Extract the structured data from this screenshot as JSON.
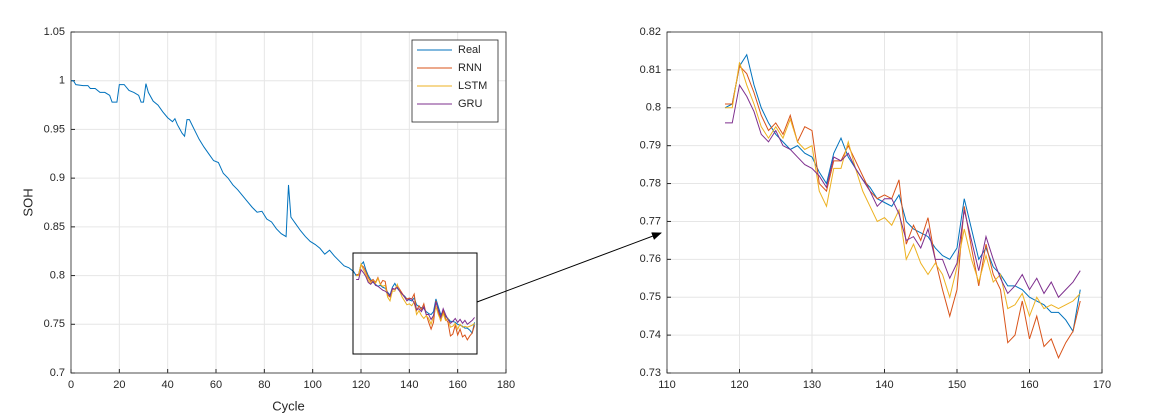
{
  "chart_data": [
    {
      "type": "line",
      "xlabel": "Cycle",
      "ylabel": "SOH",
      "xlim": [
        0,
        180
      ],
      "ylim": [
        0.7,
        1.05
      ],
      "xticks": [
        0,
        20,
        40,
        60,
        80,
        100,
        120,
        140,
        160,
        180
      ],
      "yticks": [
        0.7,
        0.75,
        0.8,
        0.85,
        0.9,
        0.95,
        1,
        1.05
      ],
      "grid": true,
      "legend": "northeast",
      "series": [
        {
          "name": "Real",
          "color": "#0072bd",
          "x": [
            0,
            1,
            2,
            5,
            7,
            8,
            10,
            12,
            14,
            16,
            17,
            19,
            20,
            22,
            24,
            26,
            28,
            29,
            30,
            31,
            32,
            34,
            36,
            38,
            40,
            42,
            43,
            44,
            46,
            47,
            48,
            49,
            51,
            53,
            55,
            57,
            59,
            61,
            63,
            65,
            67,
            69,
            71,
            73,
            75,
            77,
            79,
            80,
            81,
            83,
            85,
            87,
            89,
            90,
            91,
            93,
            95,
            97,
            99,
            101,
            103,
            105,
            107,
            109,
            111,
            113,
            115,
            117,
            118,
            119,
            120,
            121,
            122,
            123,
            124,
            125,
            126,
            127,
            128,
            129,
            130,
            131,
            132,
            133,
            134,
            135,
            136,
            137,
            138,
            139,
            140,
            141,
            142,
            143,
            144,
            145,
            146,
            147,
            148,
            149,
            150,
            151,
            152,
            153,
            154,
            155,
            156,
            157,
            158,
            159,
            160,
            161,
            162,
            163,
            164,
            165,
            166,
            167
          ],
          "values": [
            1.0,
            1.0,
            0.996,
            0.995,
            0.995,
            0.992,
            0.992,
            0.988,
            0.988,
            0.985,
            0.978,
            0.978,
            0.996,
            0.996,
            0.99,
            0.988,
            0.985,
            0.978,
            0.978,
            0.997,
            0.988,
            0.979,
            0.975,
            0.968,
            0.962,
            0.958,
            0.961,
            0.955,
            0.946,
            0.943,
            0.96,
            0.96,
            0.95,
            0.94,
            0.932,
            0.925,
            0.918,
            0.916,
            0.905,
            0.9,
            0.893,
            0.888,
            0.882,
            0.876,
            0.87,
            0.865,
            0.866,
            0.862,
            0.858,
            0.855,
            0.848,
            0.843,
            0.84,
            0.893,
            0.86,
            0.853,
            0.846,
            0.84,
            0.835,
            0.832,
            0.828,
            0.822,
            0.826,
            0.82,
            0.815,
            0.81,
            0.808,
            0.804,
            0.8,
            0.801,
            0.811,
            0.814,
            0.806,
            0.8,
            0.796,
            0.793,
            0.791,
            0.789,
            0.79,
            0.788,
            0.787,
            0.783,
            0.78,
            0.788,
            0.792,
            0.787,
            0.784,
            0.781,
            0.779,
            0.776,
            0.775,
            0.774,
            0.777,
            0.77,
            0.768,
            0.767,
            0.766,
            0.763,
            0.761,
            0.76,
            0.763,
            0.776,
            0.768,
            0.76,
            0.763,
            0.758,
            0.756,
            0.753,
            0.753,
            0.752,
            0.75,
            0.749,
            0.748,
            0.746,
            0.746,
            0.744,
            0.741,
            0.752
          ]
        },
        {
          "name": "RNN",
          "color": "#d95319",
          "x": [
            118,
            119,
            120,
            121,
            122,
            123,
            124,
            125,
            126,
            127,
            128,
            129,
            130,
            131,
            132,
            133,
            134,
            135,
            136,
            137,
            138,
            139,
            140,
            141,
            142,
            143,
            144,
            145,
            146,
            147,
            148,
            149,
            150,
            151,
            152,
            153,
            154,
            155,
            156,
            157,
            158,
            159,
            160,
            161,
            162,
            163,
            164,
            165,
            166,
            167
          ],
          "values": [
            0.801,
            0.801,
            0.811,
            0.809,
            0.804,
            0.798,
            0.794,
            0.796,
            0.793,
            0.798,
            0.791,
            0.795,
            0.794,
            0.78,
            0.778,
            0.786,
            0.786,
            0.79,
            0.786,
            0.782,
            0.778,
            0.776,
            0.777,
            0.776,
            0.781,
            0.764,
            0.769,
            0.765,
            0.771,
            0.76,
            0.752,
            0.745,
            0.752,
            0.774,
            0.763,
            0.753,
            0.764,
            0.756,
            0.752,
            0.738,
            0.74,
            0.749,
            0.739,
            0.745,
            0.737,
            0.739,
            0.734,
            0.738,
            0.741,
            0.749
          ]
        },
        {
          "name": "LSTM",
          "color": "#edb120",
          "x": [
            118,
            119,
            120,
            121,
            122,
            123,
            124,
            125,
            126,
            127,
            128,
            129,
            130,
            131,
            132,
            133,
            134,
            135,
            136,
            137,
            138,
            139,
            140,
            141,
            142,
            143,
            144,
            145,
            146,
            147,
            148,
            149,
            150,
            151,
            152,
            153,
            154,
            155,
            156,
            157,
            158,
            159,
            160,
            161,
            162,
            163,
            164,
            165,
            166,
            167
          ],
          "values": [
            0.8,
            0.8,
            0.812,
            0.806,
            0.801,
            0.795,
            0.792,
            0.795,
            0.792,
            0.797,
            0.791,
            0.789,
            0.79,
            0.778,
            0.774,
            0.784,
            0.784,
            0.791,
            0.784,
            0.778,
            0.774,
            0.77,
            0.771,
            0.769,
            0.773,
            0.76,
            0.764,
            0.759,
            0.756,
            0.759,
            0.756,
            0.75,
            0.758,
            0.768,
            0.76,
            0.754,
            0.761,
            0.754,
            0.756,
            0.747,
            0.748,
            0.751,
            0.745,
            0.75,
            0.747,
            0.748,
            0.747,
            0.748,
            0.749,
            0.751
          ]
        },
        {
          "name": "GRU",
          "color": "#7e2f8e",
          "x": [
            118,
            119,
            120,
            121,
            122,
            123,
            124,
            125,
            126,
            127,
            128,
            129,
            130,
            131,
            132,
            133,
            134,
            135,
            136,
            137,
            138,
            139,
            140,
            141,
            142,
            143,
            144,
            145,
            146,
            147,
            148,
            149,
            150,
            151,
            152,
            153,
            154,
            155,
            156,
            157,
            158,
            159,
            160,
            161,
            162,
            163,
            164,
            165,
            166,
            167
          ],
          "values": [
            0.796,
            0.796,
            0.806,
            0.803,
            0.799,
            0.793,
            0.791,
            0.794,
            0.79,
            0.789,
            0.787,
            0.785,
            0.784,
            0.782,
            0.779,
            0.787,
            0.786,
            0.788,
            0.784,
            0.781,
            0.778,
            0.774,
            0.776,
            0.776,
            0.772,
            0.765,
            0.766,
            0.763,
            0.768,
            0.76,
            0.76,
            0.755,
            0.759,
            0.773,
            0.765,
            0.757,
            0.766,
            0.76,
            0.755,
            0.751,
            0.753,
            0.756,
            0.752,
            0.755,
            0.751,
            0.754,
            0.75,
            0.752,
            0.754,
            0.757
          ]
        }
      ]
    },
    {
      "type": "line",
      "xlim": [
        110,
        170
      ],
      "ylim": [
        0.73,
        0.82
      ],
      "xticks": [
        110,
        120,
        130,
        140,
        150,
        160,
        170
      ],
      "yticks": [
        0.73,
        0.74,
        0.75,
        0.76,
        0.77,
        0.78,
        0.79,
        0.8,
        0.81,
        0.82
      ],
      "grid": true,
      "series": [
        {
          "name": "Real",
          "color": "#0072bd",
          "x": [
            118,
            119,
            120,
            121,
            122,
            123,
            124,
            125,
            126,
            127,
            128,
            129,
            130,
            131,
            132,
            133,
            134,
            135,
            136,
            137,
            138,
            139,
            140,
            141,
            142,
            143,
            144,
            145,
            146,
            147,
            148,
            149,
            150,
            151,
            152,
            153,
            154,
            155,
            156,
            157,
            158,
            159,
            160,
            161,
            162,
            163,
            164,
            165,
            166,
            167
          ],
          "values": [
            0.8,
            0.801,
            0.811,
            0.814,
            0.806,
            0.8,
            0.796,
            0.793,
            0.791,
            0.789,
            0.79,
            0.788,
            0.787,
            0.783,
            0.78,
            0.788,
            0.792,
            0.787,
            0.784,
            0.781,
            0.779,
            0.776,
            0.775,
            0.774,
            0.777,
            0.77,
            0.768,
            0.767,
            0.766,
            0.763,
            0.761,
            0.76,
            0.763,
            0.776,
            0.768,
            0.76,
            0.763,
            0.758,
            0.756,
            0.753,
            0.753,
            0.752,
            0.75,
            0.749,
            0.748,
            0.746,
            0.746,
            0.744,
            0.741,
            0.752
          ]
        },
        {
          "name": "RNN",
          "color": "#d95319",
          "x": [
            118,
            119,
            120,
            121,
            122,
            123,
            124,
            125,
            126,
            127,
            128,
            129,
            130,
            131,
            132,
            133,
            134,
            135,
            136,
            137,
            138,
            139,
            140,
            141,
            142,
            143,
            144,
            145,
            146,
            147,
            148,
            149,
            150,
            151,
            152,
            153,
            154,
            155,
            156,
            157,
            158,
            159,
            160,
            161,
            162,
            163,
            164,
            165,
            166,
            167
          ],
          "values": [
            0.801,
            0.801,
            0.811,
            0.809,
            0.804,
            0.798,
            0.794,
            0.796,
            0.793,
            0.798,
            0.791,
            0.795,
            0.794,
            0.78,
            0.778,
            0.786,
            0.786,
            0.79,
            0.786,
            0.782,
            0.778,
            0.776,
            0.777,
            0.776,
            0.781,
            0.764,
            0.769,
            0.765,
            0.771,
            0.76,
            0.752,
            0.745,
            0.752,
            0.774,
            0.763,
            0.753,
            0.764,
            0.756,
            0.752,
            0.738,
            0.74,
            0.749,
            0.739,
            0.745,
            0.737,
            0.739,
            0.734,
            0.738,
            0.741,
            0.749
          ]
        },
        {
          "name": "LSTM",
          "color": "#edb120",
          "x": [
            118,
            119,
            120,
            121,
            122,
            123,
            124,
            125,
            126,
            127,
            128,
            129,
            130,
            131,
            132,
            133,
            134,
            135,
            136,
            137,
            138,
            139,
            140,
            141,
            142,
            143,
            144,
            145,
            146,
            147,
            148,
            149,
            150,
            151,
            152,
            153,
            154,
            155,
            156,
            157,
            158,
            159,
            160,
            161,
            162,
            163,
            164,
            165,
            166,
            167
          ],
          "values": [
            0.8,
            0.8,
            0.812,
            0.806,
            0.801,
            0.795,
            0.792,
            0.795,
            0.792,
            0.797,
            0.791,
            0.789,
            0.79,
            0.778,
            0.774,
            0.784,
            0.784,
            0.791,
            0.784,
            0.778,
            0.774,
            0.77,
            0.771,
            0.769,
            0.773,
            0.76,
            0.764,
            0.759,
            0.756,
            0.759,
            0.756,
            0.75,
            0.758,
            0.768,
            0.76,
            0.754,
            0.761,
            0.754,
            0.756,
            0.747,
            0.748,
            0.751,
            0.745,
            0.75,
            0.747,
            0.748,
            0.747,
            0.748,
            0.749,
            0.751
          ]
        },
        {
          "name": "GRU",
          "color": "#7e2f8e",
          "x": [
            118,
            119,
            120,
            121,
            122,
            123,
            124,
            125,
            126,
            127,
            128,
            129,
            130,
            131,
            132,
            133,
            134,
            135,
            136,
            137,
            138,
            139,
            140,
            141,
            142,
            143,
            144,
            145,
            146,
            147,
            148,
            149,
            150,
            151,
            152,
            153,
            154,
            155,
            156,
            157,
            158,
            159,
            160,
            161,
            162,
            163,
            164,
            165,
            166,
            167
          ],
          "values": [
            0.796,
            0.796,
            0.806,
            0.803,
            0.799,
            0.793,
            0.791,
            0.794,
            0.79,
            0.789,
            0.787,
            0.785,
            0.784,
            0.782,
            0.779,
            0.787,
            0.786,
            0.788,
            0.784,
            0.781,
            0.778,
            0.774,
            0.776,
            0.776,
            0.772,
            0.765,
            0.766,
            0.763,
            0.768,
            0.76,
            0.76,
            0.755,
            0.759,
            0.773,
            0.765,
            0.757,
            0.766,
            0.76,
            0.755,
            0.751,
            0.753,
            0.756,
            0.752,
            0.755,
            0.751,
            0.754,
            0.75,
            0.752,
            0.754,
            0.757
          ]
        }
      ]
    }
  ]
}
